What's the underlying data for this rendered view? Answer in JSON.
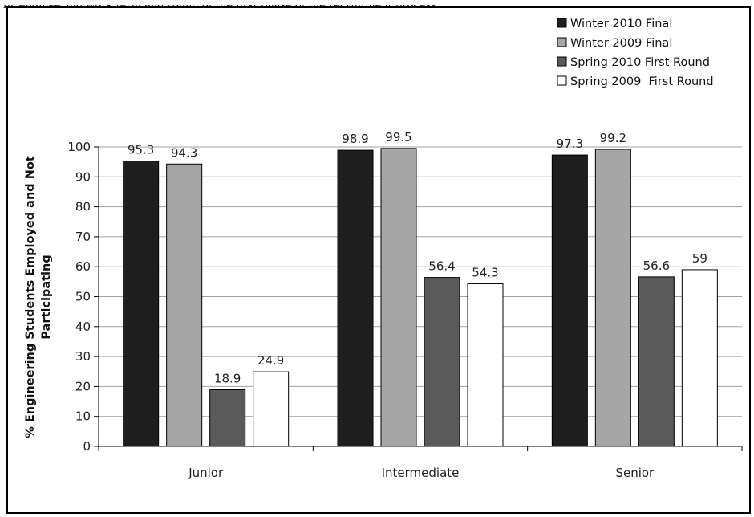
{
  "page_caption": "by engineering work term and round of the first phase of the recruitment process",
  "chart_data": {
    "type": "bar",
    "categories": [
      "Junior",
      "Intermediate",
      "Senior"
    ],
    "series": [
      {
        "name": "Winter 2010 Final",
        "values": [
          95.3,
          98.9,
          97.3
        ],
        "color": "#1f1f1f"
      },
      {
        "name": "Winter 2009 Final",
        "values": [
          94.3,
          99.5,
          99.2
        ],
        "color": "#a6a6a6"
      },
      {
        "name": "Spring 2010 First Round",
        "values": [
          18.9,
          56.4,
          56.6
        ],
        "color": "#5a5a5a"
      },
      {
        "name": "Spring 2009  First Round",
        "values": [
          24.9,
          54.3,
          59
        ],
        "color": "#ffffff"
      }
    ],
    "data_labels": [
      [
        "95.3",
        "98.9",
        "97.3"
      ],
      [
        "94.3",
        "99.5",
        "99.2"
      ],
      [
        "18.9",
        "56.4",
        "56.6"
      ],
      [
        "24.9",
        "54.3",
        "59"
      ]
    ],
    "ylabel_lines": [
      "% Engineering Students Employed and Not",
      "Participating"
    ],
    "ylim": [
      0,
      100
    ],
    "yticks": [
      "0",
      "10",
      "20",
      "30",
      "40",
      "50",
      "60",
      "70",
      "80",
      "90",
      "100"
    ],
    "grid": true,
    "legend_position": "top-right",
    "bar_outline": "#000000",
    "grid_color": "#a0a0a0"
  }
}
